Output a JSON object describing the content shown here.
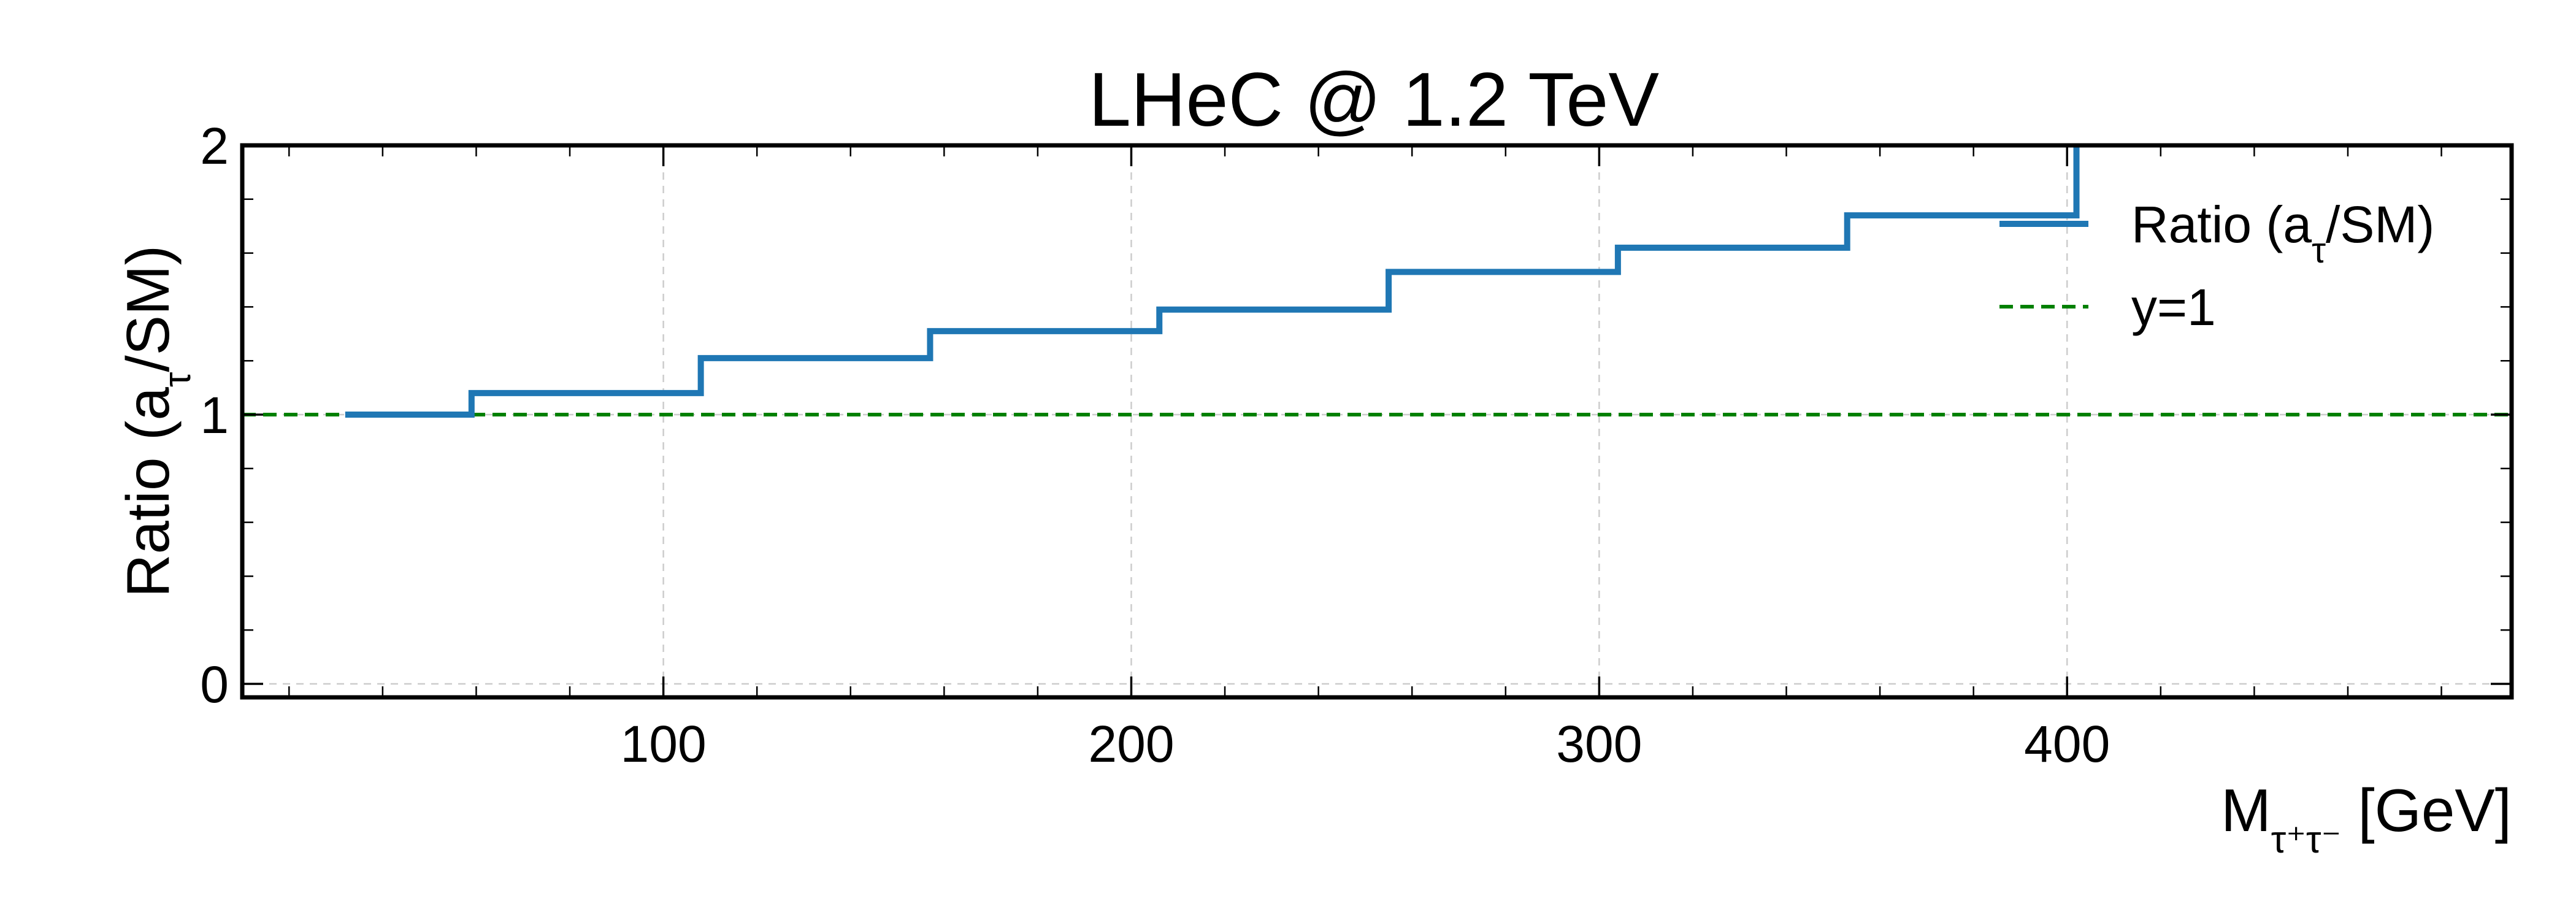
{
  "chart_data": {
    "type": "line",
    "title": "LHeC @ 1.2 TeV",
    "xlabel": "M",
    "xlabel_sub": "τ⁺τ⁻",
    "xlabel_unit": " [GeV]",
    "ylabel": "Ratio (a",
    "ylabel_sub": "τ",
    "ylabel_end": "/SM)",
    "xlim": [
      10,
      495
    ],
    "ylim": [
      -0.05,
      2.0
    ],
    "x_ticks": [
      100,
      200,
      300,
      400
    ],
    "x_tick_labels": [
      "100",
      "200",
      "300",
      "400"
    ],
    "y_ticks": [
      0,
      1,
      2
    ],
    "y_tick_labels": [
      "0",
      "1",
      "2"
    ],
    "grid": true,
    "legend_position": "top-right",
    "series": [
      {
        "name": "Ratio (a",
        "name_sub": "τ",
        "name_end": "/SM)",
        "style": "step",
        "color": "#1f77b4",
        "bin_edges": [
          32,
          59,
          108,
          157,
          206,
          255,
          304,
          353,
          402
        ],
        "values": [
          1.0,
          1.08,
          1.21,
          1.31,
          1.39,
          1.53,
          1.62,
          1.74
        ],
        "last_value": 2.0
      },
      {
        "name": "y=1",
        "style": "dashed",
        "color": "#008000",
        "y": 1
      }
    ]
  }
}
